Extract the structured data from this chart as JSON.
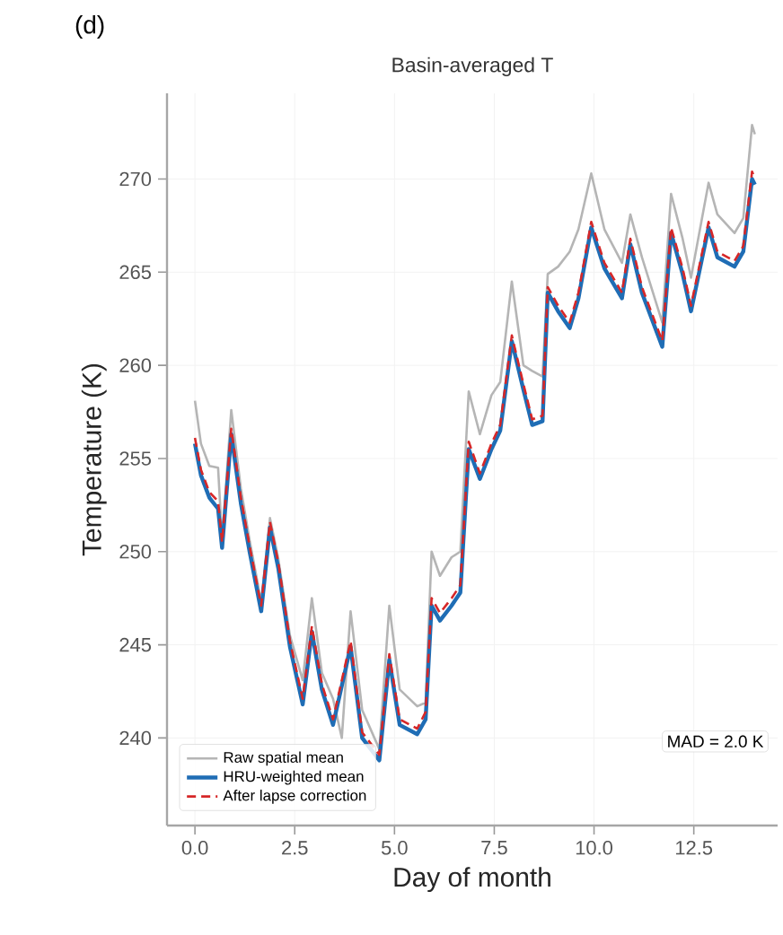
{
  "chart_data": {
    "type": "line",
    "title": "Basin-averaged T",
    "xlabel": "Day of month",
    "ylabel": "Temperature (K)",
    "annotations": [
      "(d)",
      "MAD = 2.0 K"
    ],
    "x": [
      0,
      0.15,
      0.36,
      0.58,
      0.68,
      0.91,
      1.15,
      1.37,
      1.66,
      1.88,
      2.09,
      2.38,
      2.7,
      2.93,
      3.18,
      3.46,
      3.68,
      3.9,
      4.19,
      4.62,
      4.87,
      5.13,
      5.57,
      5.78,
      5.93,
      6.14,
      6.43,
      6.65,
      6.86,
      7.14,
      7.43,
      7.65,
      7.94,
      8.23,
      8.45,
      8.71,
      8.84,
      9.1,
      9.39,
      9.61,
      9.93,
      10.26,
      10.7,
      10.91,
      11.2,
      11.71,
      11.93,
      12.22,
      12.43,
      12.87,
      13.09,
      13.52,
      13.74,
      13.96,
      14.03
    ],
    "series": [
      {
        "name": "Raw spatial mean",
        "color": "#b5b5b5",
        "line_style": "solid",
        "values": [
          258.1,
          255.8,
          254.6,
          254.5,
          250.6,
          257.6,
          253.4,
          250.6,
          247.3,
          251.8,
          249.6,
          245.5,
          243.1,
          247.5,
          243.5,
          242.1,
          240.0,
          246.8,
          241.5,
          239.4,
          247.1,
          242.6,
          241.7,
          241.9,
          250.0,
          248.7,
          249.7,
          250.0,
          258.6,
          256.3,
          258.4,
          259.1,
          264.5,
          260.0,
          259.7,
          259.4,
          264.9,
          265.3,
          266.1,
          267.3,
          270.3,
          267.3,
          265.5,
          268.1,
          265.8,
          262.3,
          269.2,
          266.8,
          264.7,
          269.8,
          268.1,
          267.1,
          267.9,
          272.9,
          272.4
        ]
      },
      {
        "name": "HRU-weighted mean",
        "color": "#1f6db5",
        "line_style": "solid",
        "values": [
          255.8,
          254.1,
          252.9,
          252.3,
          250.2,
          256.3,
          252.6,
          250.0,
          246.8,
          251.3,
          249.1,
          244.9,
          241.8,
          245.7,
          242.6,
          240.7,
          null,
          244.9,
          240.0,
          238.8,
          244.2,
          240.7,
          240.2,
          241.0,
          247.1,
          246.3,
          247.1,
          247.8,
          255.5,
          253.9,
          255.5,
          256.5,
          261.3,
          258.7,
          256.8,
          257.0,
          263.9,
          262.9,
          262.0,
          263.6,
          267.4,
          265.2,
          263.6,
          266.5,
          263.9,
          261.0,
          267.1,
          264.9,
          262.9,
          267.4,
          265.8,
          265.3,
          266.1,
          270.0,
          269.7
        ]
      },
      {
        "name": "After lapse correction",
        "color": "#d62728",
        "line_style": "dashed",
        "values": [
          256.1,
          254.4,
          253.2,
          252.7,
          250.5,
          256.6,
          252.9,
          250.3,
          247.1,
          251.6,
          249.4,
          245.2,
          242.1,
          246.0,
          242.9,
          241.0,
          null,
          245.2,
          240.3,
          239.1,
          244.5,
          241.0,
          240.5,
          241.4,
          247.5,
          246.7,
          247.5,
          248.2,
          255.9,
          254.2,
          255.8,
          256.8,
          261.6,
          259.0,
          257.1,
          257.3,
          264.2,
          263.2,
          262.3,
          263.9,
          267.7,
          265.5,
          263.9,
          266.8,
          264.2,
          261.3,
          267.4,
          265.2,
          263.2,
          267.7,
          266.1,
          265.6,
          266.4,
          270.4,
          270.0
        ]
      }
    ],
    "xlim": [
      -0.7,
      14.6
    ],
    "ylim": [
      235.3,
      274.6
    ],
    "xticks": [
      {
        "value": 0,
        "label": "0.0"
      },
      {
        "value": 2.5,
        "label": "2.5"
      },
      {
        "value": 5,
        "label": "5.0"
      },
      {
        "value": 7.5,
        "label": "7.5"
      },
      {
        "value": 10,
        "label": "10.0"
      },
      {
        "value": 12.5,
        "label": "12.5"
      }
    ],
    "yticks": [
      240,
      245,
      250,
      255,
      260,
      265,
      270
    ],
    "grid": true,
    "legend": "bottom left"
  }
}
